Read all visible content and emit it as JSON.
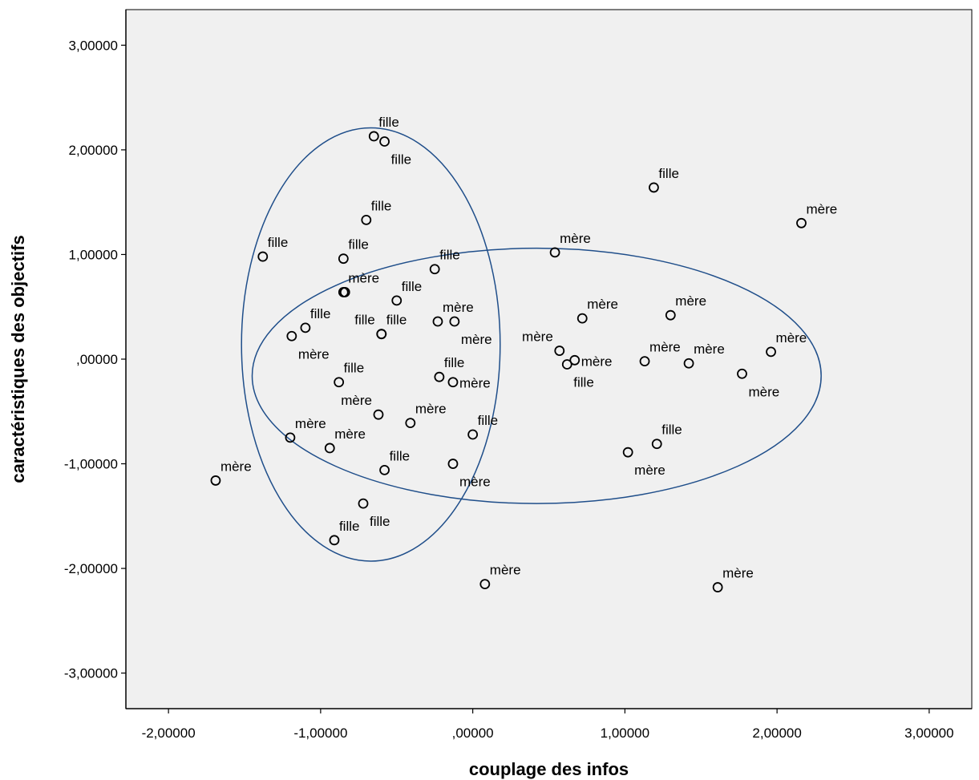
{
  "chart_data": {
    "type": "scatter",
    "title": "",
    "xlabel": "couplage des infos",
    "ylabel": "caractéristiques des objectifs",
    "xlim": [
      -2.28,
      3.28
    ],
    "ylim": [
      -3.34,
      3.34
    ],
    "x_ticks": [
      {
        "value": -2,
        "label": "-2,00000"
      },
      {
        "value": -1,
        "label": "-1,00000"
      },
      {
        "value": 0,
        "label": ",00000"
      },
      {
        "value": 1,
        "label": "1,00000"
      },
      {
        "value": 2,
        "label": "2,00000"
      },
      {
        "value": 3,
        "label": "3,00000"
      }
    ],
    "y_ticks": [
      {
        "value": 3,
        "label": "3,00000"
      },
      {
        "value": 2,
        "label": "2,00000"
      },
      {
        "value": 1,
        "label": "1,00000"
      },
      {
        "value": 0,
        "label": ",00000"
      },
      {
        "value": -1,
        "label": "-1,00000"
      },
      {
        "value": -2,
        "label": "-2,00000"
      },
      {
        "value": -3,
        "label": "-3,00000"
      }
    ],
    "grid": false,
    "background": "#f0f0f0",
    "marker_color": "#000000",
    "ellipse_color": "#1f4e8a",
    "points": [
      {
        "x": -0.65,
        "y": 2.13,
        "label": "fille",
        "lpos": "tr"
      },
      {
        "x": -0.58,
        "y": 2.08,
        "label": "fille",
        "lpos": "br"
      },
      {
        "x": -0.7,
        "y": 1.33,
        "label": "fille",
        "lpos": "tr"
      },
      {
        "x": -1.38,
        "y": 0.98,
        "label": "fille",
        "lpos": "tr"
      },
      {
        "x": -0.85,
        "y": 0.96,
        "label": "fille",
        "lpos": "tr"
      },
      {
        "x": -0.25,
        "y": 0.86,
        "label": "fille",
        "lpos": "tr"
      },
      {
        "x": 0.54,
        "y": 1.02,
        "label": "mère",
        "lpos": "tr"
      },
      {
        "x": 1.19,
        "y": 1.64,
        "label": "fille",
        "lpos": "tr"
      },
      {
        "x": 2.16,
        "y": 1.3,
        "label": "mère",
        "lpos": "tr"
      },
      {
        "x": -0.85,
        "y": 0.64,
        "label": "mère",
        "lpos": "tr"
      },
      {
        "x": -0.84,
        "y": 0.64,
        "label": "",
        "lpos": "tr"
      },
      {
        "x": -0.5,
        "y": 0.56,
        "label": "fille",
        "lpos": "tr"
      },
      {
        "x": -1.1,
        "y": 0.3,
        "label": "fille",
        "lpos": "tr"
      },
      {
        "x": -1.19,
        "y": 0.22,
        "label": "mère",
        "lpos": "br"
      },
      {
        "x": -0.6,
        "y": 0.24,
        "label": "fille",
        "lpos": "tl"
      },
      {
        "x": -0.6,
        "y": 0.24,
        "label": "fille",
        "lpos": "tr"
      },
      {
        "x": -0.23,
        "y": 0.36,
        "label": "mère",
        "lpos": "tr"
      },
      {
        "x": -0.12,
        "y": 0.36,
        "label": "mère",
        "lpos": "br"
      },
      {
        "x": 0.72,
        "y": 0.39,
        "label": "mère",
        "lpos": "tr"
      },
      {
        "x": 1.3,
        "y": 0.42,
        "label": "mère",
        "lpos": "tr"
      },
      {
        "x": 0.57,
        "y": 0.08,
        "label": "mère",
        "lpos": "tl"
      },
      {
        "x": 0.67,
        "y": -0.01,
        "label": "mère",
        "lpos": "r"
      },
      {
        "x": 0.62,
        "y": -0.05,
        "label": "fille",
        "lpos": "br"
      },
      {
        "x": 1.13,
        "y": -0.02,
        "label": "mère",
        "lpos": "tr"
      },
      {
        "x": 1.42,
        "y": -0.04,
        "label": "mère",
        "lpos": "tr"
      },
      {
        "x": 1.96,
        "y": 0.07,
        "label": "mère",
        "lpos": "tr"
      },
      {
        "x": 1.77,
        "y": -0.14,
        "label": "mère",
        "lpos": "br"
      },
      {
        "x": -0.88,
        "y": -0.22,
        "label": "fille",
        "lpos": "tr"
      },
      {
        "x": -0.22,
        "y": -0.17,
        "label": "fille",
        "lpos": "tr"
      },
      {
        "x": -0.13,
        "y": -0.22,
        "label": "mère",
        "lpos": "r"
      },
      {
        "x": -0.62,
        "y": -0.53,
        "label": "mère",
        "lpos": "tl"
      },
      {
        "x": -0.41,
        "y": -0.61,
        "label": "mère",
        "lpos": "tr"
      },
      {
        "x": 0.0,
        "y": -0.72,
        "label": "fille",
        "lpos": "tr"
      },
      {
        "x": -1.2,
        "y": -0.75,
        "label": "mère",
        "lpos": "tr"
      },
      {
        "x": -0.94,
        "y": -0.85,
        "label": "mère",
        "lpos": "tr"
      },
      {
        "x": -0.58,
        "y": -1.06,
        "label": "fille",
        "lpos": "tr"
      },
      {
        "x": -0.13,
        "y": -1.0,
        "label": "mère",
        "lpos": "br"
      },
      {
        "x": 1.02,
        "y": -0.89,
        "label": "mère",
        "lpos": "br"
      },
      {
        "x": 1.21,
        "y": -0.81,
        "label": "fille",
        "lpos": "tr"
      },
      {
        "x": -1.69,
        "y": -1.16,
        "label": "mère",
        "lpos": "tr"
      },
      {
        "x": -0.72,
        "y": -1.38,
        "label": "fille",
        "lpos": "br"
      },
      {
        "x": -0.91,
        "y": -1.73,
        "label": "fille",
        "lpos": "tr"
      },
      {
        "x": 0.08,
        "y": -2.15,
        "label": "mère",
        "lpos": "tr"
      },
      {
        "x": 1.61,
        "y": -2.18,
        "label": "mère",
        "lpos": "tr"
      }
    ],
    "ellipses": [
      {
        "cx": -0.67,
        "cy": 0.14,
        "rx": 0.85,
        "ry": 2.07
      },
      {
        "cx": 0.42,
        "cy": -0.16,
        "rx": 1.87,
        "ry": 1.22
      }
    ]
  }
}
